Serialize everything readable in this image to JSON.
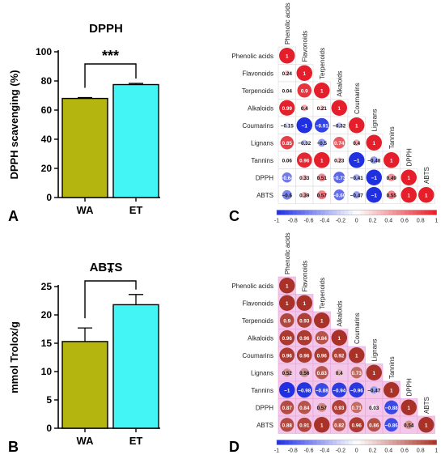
{
  "panels": {
    "A": "A",
    "B": "B",
    "C": "C",
    "D": "D"
  },
  "chart_data": [
    {
      "panel": "A",
      "type": "bar",
      "title": "DPPH",
      "xlabel": "",
      "ylabel": "DPPH scavenging (%)",
      "categories": [
        "WA",
        "ET"
      ],
      "values": [
        68,
        77.5
      ],
      "errors": [
        0.6,
        0.8
      ],
      "colors": [
        "#b5b50f",
        "#44f5f5"
      ],
      "ylim": [
        0,
        100
      ],
      "yticks": [
        0,
        20,
        40,
        60,
        80,
        100
      ],
      "annotation": "***"
    },
    {
      "panel": "B",
      "type": "bar",
      "title": "ABTS",
      "xlabel": "",
      "ylabel": "mmol Trolox/g",
      "categories": [
        "WA",
        "ET"
      ],
      "values": [
        15.3,
        21.8
      ],
      "errors": [
        2.4,
        1.8
      ],
      "colors": [
        "#b5b50f",
        "#44f5f5"
      ],
      "ylim": [
        0,
        25
      ],
      "yticks": [
        0,
        5,
        10,
        15,
        20,
        25
      ],
      "annotation": "*"
    },
    {
      "panel": "C",
      "type": "heatmap",
      "title": "",
      "variables": [
        "Phenolic acids",
        "Flavonoids",
        "Terpenoids",
        "Alkaloids",
        "Coumarins",
        "Lignans",
        "Tannins",
        "DPPH",
        "ABTS"
      ],
      "lower": [
        [
          1
        ],
        [
          0.24,
          1
        ],
        [
          0.04,
          0.9,
          1
        ],
        [
          0.99,
          0.4,
          0.21,
          1
        ],
        [
          -0.15,
          -1,
          -0.91,
          -0.32,
          1
        ],
        [
          0.85,
          -0.32,
          -0.5,
          0.74,
          0.4,
          1
        ],
        [
          0.06,
          0.96,
          1,
          0.23,
          -1,
          -0.48,
          1
        ],
        [
          -0.64,
          0.33,
          0.51,
          -0.73,
          -0.41,
          -1,
          0.49,
          1
        ],
        [
          -0.6,
          0.39,
          0.57,
          -0.69,
          -0.47,
          -1,
          0.55,
          1,
          1
        ]
      ],
      "colorbar_ticks": [
        "-1",
        "-0.8",
        "-0.6",
        "-0.4",
        "-0.2",
        "0",
        "0.2",
        "0.4",
        "0.6",
        "0.8",
        "1"
      ],
      "colors": {
        "neg": "#2030e0",
        "mid": "#ffffff",
        "pos": "#e41e2a"
      }
    },
    {
      "panel": "D",
      "type": "heatmap",
      "title": "",
      "variables": [
        "Phenolic acids",
        "Flavonoids",
        "Terpenoids",
        "Alkaloids",
        "Coumarins",
        "Lignans",
        "Tannins",
        "DPPH",
        "ABTS"
      ],
      "lower": [
        [
          1
        ],
        [
          1,
          1
        ],
        [
          0.9,
          0.93,
          1
        ],
        [
          0.96,
          0.96,
          0.84,
          1
        ],
        [
          0.96,
          0.96,
          0.96,
          0.92,
          1
        ],
        [
          0.52,
          0.56,
          0.83,
          0.4,
          0.73,
          1
        ],
        [
          -1,
          -0.98,
          -0.88,
          -0.94,
          -0.96,
          -0.47,
          1
        ],
        [
          0.87,
          0.84,
          0.57,
          0.93,
          0.71,
          0.03,
          -0.88,
          1
        ],
        [
          0.88,
          0.91,
          1,
          0.82,
          0.96,
          0.86,
          -0.86,
          0.54,
          1
        ]
      ],
      "colorbar_ticks": [
        "-1",
        "-0.8",
        "-0.6",
        "-0.4",
        "-0.2",
        "0",
        "0.2",
        "0.4",
        "0.6",
        "0.8",
        "1"
      ],
      "colors": {
        "neg": "#2030e0",
        "mid": "#ffffff",
        "pos": "#a83228"
      }
    }
  ]
}
